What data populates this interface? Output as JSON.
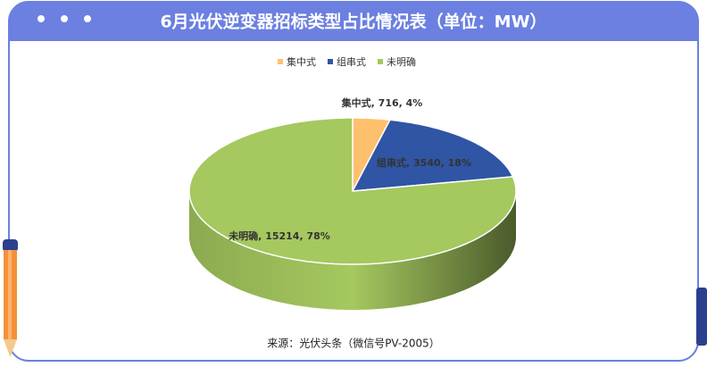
{
  "chart_data": {
    "type": "pie3d",
    "title": "6月光伏逆变器招标类型占比情况表（单位：MW）",
    "categories": [
      "集中式",
      "组串式",
      "未明确"
    ],
    "values": [
      716,
      3540,
      15214
    ],
    "value_labels": [
      "集中式, 716, 4%",
      "组串式, 3540, 18%",
      "未明确, 15214, 78%"
    ],
    "colors": [
      "#ffc06e",
      "#2f55a4",
      "#a5c85f"
    ],
    "source": "来源：光伏头条（微信号PV-2005）",
    "legend": "top"
  }
}
